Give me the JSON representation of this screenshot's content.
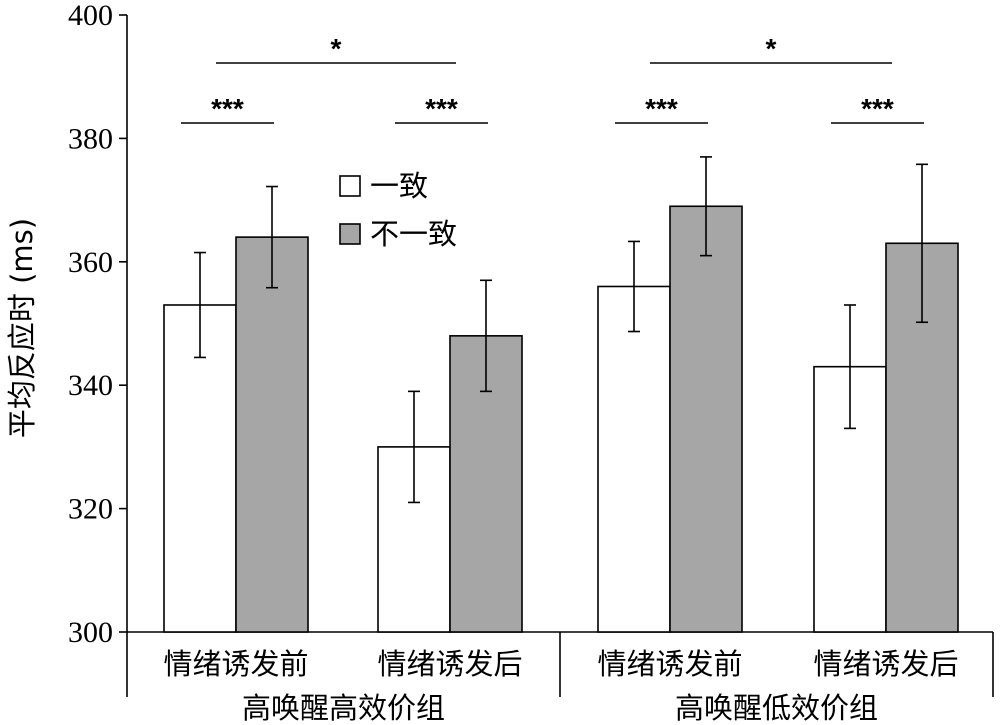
{
  "chart_data": {
    "type": "bar",
    "title": "",
    "xlabel": "",
    "ylabel": "平均反应时 (ms)",
    "ylim": [
      300,
      400
    ],
    "yticks": [
      300,
      320,
      340,
      360,
      380,
      400
    ],
    "grid": false,
    "legend_position": "inside-top-center",
    "groups": [
      {
        "label": "高唤醒高效价组",
        "categories": [
          "情绪诱发前",
          "情绪诱发后"
        ]
      },
      {
        "label": "高唤醒低效价组",
        "categories": [
          "情绪诱发前",
          "情绪诱发后"
        ]
      }
    ],
    "categories": [
      "情绪诱发前",
      "情绪诱发后",
      "情绪诱发前",
      "情绪诱发后"
    ],
    "series": [
      {
        "name": "一致",
        "color": "#ffffff",
        "values": [
          353,
          330,
          356,
          343
        ],
        "error": [
          8.5,
          9,
          7.3,
          10
        ]
      },
      {
        "name": "不一致",
        "color": "#a6a6a6",
        "values": [
          364,
          348,
          369,
          363
        ],
        "error": [
          8.2,
          9,
          8,
          12.8
        ]
      }
    ],
    "significance": [
      {
        "text": "***",
        "group": 0,
        "category": 0,
        "compare": "一致 vs 不一致"
      },
      {
        "text": "***",
        "group": 0,
        "category": 1,
        "compare": "一致 vs 不一致"
      },
      {
        "text": "***",
        "group": 1,
        "category": 0,
        "compare": "一致 vs 不一致"
      },
      {
        "text": "***",
        "group": 1,
        "category": 1,
        "compare": "一致 vs 不一致"
      },
      {
        "text": "*",
        "group": 0,
        "compare": "情绪诱发前 vs 情绪诱发后"
      },
      {
        "text": "*",
        "group": 1,
        "compare": "情绪诱发前 vs 情绪诱发后"
      }
    ]
  }
}
